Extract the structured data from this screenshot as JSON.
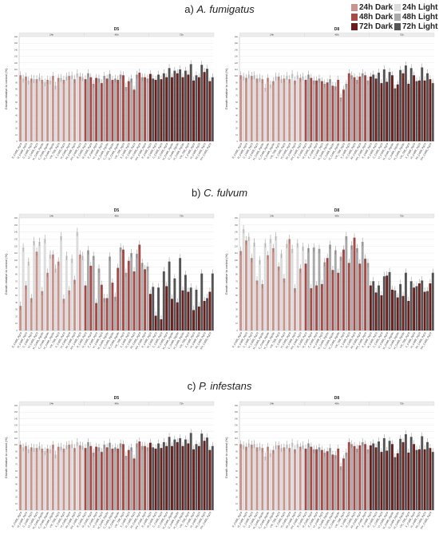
{
  "legend": {
    "items": [
      {
        "label": "24h Dark",
        "color": "#c9948e"
      },
      {
        "label": "24h Light",
        "color": "#dcdcdc"
      },
      {
        "label": "48h Dark",
        "color": "#a84a48"
      },
      {
        "label": "48h Light",
        "color": "#a9a9a9"
      },
      {
        "label": "72h Dark",
        "color": "#6b1c1c"
      },
      {
        "label": "72h Light",
        "color": "#555555"
      }
    ]
  },
  "sections": [
    {
      "letter": "a)",
      "organism": "A. fumigatus"
    },
    {
      "letter": "b)",
      "organism": "C. fulvum"
    },
    {
      "letter": "c)",
      "organism": "P. infestans"
    }
  ],
  "chart_data": [
    {
      "type": "bar",
      "title": "D5",
      "section": "a) A. fumigatus",
      "ylabel": "Growth relative to control (%)",
      "facets": [
        "24h",
        "48h",
        "72h"
      ],
      "categories": [
        "R_CoBB_Rg19",
        "M_CoBB_Rg19",
        "C_CoBB_Rg19",
        "VI_CoBB_Rg19",
        "M_CoBB_Rg19b",
        "C_CoBB_Rg19b",
        "VI_CoBB_Rg19b",
        "VIII_TBB_Rg19",
        "X_CoBB_Rg19",
        "XI_CoBB_Rg19",
        "XII_CoBB_Rg19",
        "XIV_CoBB_Rg19"
      ],
      "series": [
        {
          "name": "24h Dark",
          "values": [
            101,
            99,
            96,
            95,
            94,
            94,
            100,
            97,
            94,
            100,
            95,
            99
          ]
        },
        {
          "name": "24h Light",
          "values": [
            96,
            93,
            95,
            98,
            90,
            93,
            85,
            97,
            99,
            101,
            104,
            98
          ]
        },
        {
          "name": "48h Dark",
          "values": [
            95,
            98,
            97,
            89,
            96,
            94,
            94,
            101,
            92,
            79,
            105,
            98
          ]
        },
        {
          "name": "48h Light",
          "values": [
            104,
            88,
            96,
            100,
            103,
            96,
            102,
            83,
            96,
            102,
            98,
            96
          ]
        },
        {
          "name": "72h Dark",
          "values": [
            103,
            94,
            95,
            98,
            98,
            104,
            98,
            102,
            93,
            98,
            106,
            92
          ]
        },
        {
          "name": "72h Light",
          "values": [
            96,
            102,
            104,
            112,
            108,
            110,
            108,
            118,
            101,
            117,
            111,
            98
          ]
        }
      ]
    },
    {
      "type": "bar",
      "title": "D8",
      "section": "a) A. fumigatus",
      "ylabel": "Growth relative to control (%)",
      "facets": [
        "24h",
        "48h",
        "72h"
      ],
      "categories": [
        "R_CoBB_Rg19",
        "M_CoBB_Rg19",
        "C_CoBB_Rg19",
        "VI_CoBB_Rg19",
        "M_CoBB_Rg19b",
        "C_CoBB_Rg19b",
        "VI_CoBB_Rg19b",
        "VIII_TBB_Rg19",
        "X_CoBB_Rg19",
        "XI_CoBB_Rg19",
        "XII_CoBB_Rg19",
        "XIV_CoBB_Rg19"
      ],
      "series": [
        {
          "name": "24h Dark",
          "values": [
            101,
            97,
            100,
            96,
            95,
            97,
            92,
            99,
            96,
            95,
            93,
            97
          ]
        },
        {
          "name": "24h Light",
          "values": [
            99,
            102,
            101,
            97,
            82,
            87,
            99,
            95,
            100,
            103,
            101,
            99
          ]
        },
        {
          "name": "48h Dark",
          "values": [
            94,
            97,
            93,
            92,
            90,
            85,
            94,
            79,
            104,
            98,
            99,
            101
          ]
        },
        {
          "name": "48h Light",
          "values": [
            102,
            93,
            96,
            88,
            95,
            84,
            67,
            88,
            101,
            94,
            104,
            93
          ]
        },
        {
          "name": "72h Dark",
          "values": [
            99,
            96,
            89,
            91,
            101,
            87,
            104,
            88,
            101,
            93,
            93,
            95
          ]
        },
        {
          "name": "72h Light",
          "values": [
            102,
            105,
            110,
            106,
            81,
            109,
            116,
            112,
            92,
            113,
            104,
            89
          ]
        }
      ]
    },
    {
      "type": "bar",
      "title": "D5",
      "section": "b) C. fulvum",
      "ylabel": "Growth relative to control (%)",
      "facets": [
        "24h",
        "48h",
        "72h"
      ],
      "categories": [
        "R_CoBB_Rg19",
        "M_CoBB_Rg19",
        "C_CoBB_Rg19",
        "VI_CoBB_Rg19",
        "M_CoBB_Rg19b",
        "C_CoBB_Rg19b",
        "VI_CoBB_Rg19b",
        "VIII_TBB_Rg19",
        "X_CoBB_Rg19",
        "XI_CoBB_Rg19",
        "XII_CoBB_Rg19",
        "XIV_CoBB_Rg19"
      ],
      "series": [
        {
          "name": "24h Dark",
          "values": [
            35,
            64,
            46,
            112,
            56,
            82,
            108,
            98,
            45,
            57,
            72,
            108
          ]
        },
        {
          "name": "24h Light",
          "values": [
            118,
            98,
            127,
            126,
            130,
            108,
            88,
            134,
            106,
            102,
            140,
            106
          ]
        },
        {
          "name": "48h Dark",
          "values": [
            64,
            92,
            39,
            65,
            46,
            68,
            89,
            115,
            99,
            84,
            122,
            87
          ]
        },
        {
          "name": "48h Light",
          "values": [
            114,
            106,
            88,
            46,
            105,
            48,
            118,
            82,
            110,
            109,
            96,
            91
          ]
        },
        {
          "name": "72h Dark",
          "values": [
            52,
            21,
            16,
            63,
            45,
            40,
            57,
            55,
            29,
            34,
            42,
            55
          ]
        },
        {
          "name": "72h Light",
          "values": [
            62,
            61,
            84,
            98,
            74,
            103,
            79,
            61,
            58,
            81,
            46,
            81
          ]
        }
      ]
    },
    {
      "type": "bar",
      "title": "D8",
      "section": "b) C. fulvum",
      "ylabel": "Growth relative to control (%)",
      "facets": [
        "24h",
        "48h",
        "72h"
      ],
      "categories": [
        "R_CoBB_Rg19",
        "M_CoBB_Rg19",
        "C_CoBB_Rg19",
        "VI_CoBB_Rg19",
        "M_CoBB_Rg19b",
        "C_CoBB_Rg19b",
        "VI_CoBB_Rg19b",
        "VIII_TBB_Rg19",
        "X_CoBB_Rg19",
        "XI_CoBB_Rg19",
        "XII_CoBB_Rg19",
        "XIV_CoBB_Rg19"
      ],
      "series": [
        {
          "name": "24h Dark",
          "values": [
            113,
            128,
            103,
            71,
            66,
            107,
            117,
            91,
            74,
            130,
            60,
            88
          ]
        },
        {
          "name": "24h Light",
          "values": [
            144,
            133,
            125,
            100,
            124,
            130,
            134,
            109,
            123,
            116,
            124,
            119
          ]
        },
        {
          "name": "48h Dark",
          "values": [
            95,
            60,
            64,
            66,
            103,
            86,
            82,
            115,
            96,
            132,
            95,
            102
          ]
        },
        {
          "name": "48h Light",
          "values": [
            117,
            118,
            116,
            97,
            122,
            114,
            105,
            134,
            121,
            117,
            126,
            96
          ]
        },
        {
          "name": "72h Dark",
          "values": [
            64,
            54,
            50,
            78,
            58,
            47,
            49,
            42,
            61,
            67,
            55,
            67
          ]
        },
        {
          "name": "72h Light",
          "values": [
            70,
            64,
            77,
            83,
            57,
            66,
            82,
            70,
            63,
            71,
            56,
            82
          ]
        }
      ]
    },
    {
      "type": "bar",
      "title": "D5",
      "section": "c) P. infestans",
      "ylabel": "Growth relative to control (%)",
      "facets": [
        "24h",
        "48h",
        "72h"
      ],
      "categories": [
        "R_CoBB_Rg19",
        "M_CoBB_Rg19",
        "C_CoBB_Rg19",
        "VI_CoBB_Rg19",
        "M_CoBB_Rg19b",
        "C_CoBB_Rg19b",
        "VI_CoBB_Rg19b",
        "VIII_TBB_Rg19",
        "X_CoBB_Rg19",
        "XI_CoBB_Rg19",
        "XII_CoBB_Rg19",
        "XIV_CoBB_Rg19"
      ],
      "series": [
        {
          "name": "24h Dark",
          "values": [
            100,
            98,
            96,
            95,
            94,
            94,
            100,
            97,
            94,
            100,
            95,
            99
          ]
        },
        {
          "name": "24h Light",
          "values": [
            96,
            93,
            95,
            98,
            90,
            93,
            85,
            97,
            99,
            101,
            104,
            98
          ]
        },
        {
          "name": "48h Dark",
          "values": [
            95,
            98,
            97,
            89,
            96,
            94,
            94,
            101,
            92,
            79,
            105,
            98
          ]
        },
        {
          "name": "48h Light",
          "values": [
            104,
            88,
            96,
            100,
            103,
            96,
            102,
            83,
            96,
            102,
            98,
            96
          ]
        },
        {
          "name": "72h Dark",
          "values": [
            103,
            94,
            95,
            98,
            98,
            104,
            98,
            102,
            93,
            98,
            106,
            92
          ]
        },
        {
          "name": "72h Light",
          "values": [
            96,
            102,
            104,
            112,
            108,
            110,
            108,
            118,
            101,
            117,
            111,
            98
          ]
        }
      ]
    },
    {
      "type": "bar",
      "title": "D8",
      "section": "c) P. infestans",
      "ylabel": "Growth relative to control (%)",
      "facets": [
        "24h",
        "48h",
        "72h"
      ],
      "categories": [
        "R_CoBB_Rg19",
        "M_CoBB_Rg19",
        "C_CoBB_Rg19",
        "VI_CoBB_Rg19",
        "M_CoBB_Rg19b",
        "C_CoBB_Rg19b",
        "VI_CoBB_Rg19b",
        "VIII_TBB_Rg19",
        "X_CoBB_Rg19",
        "XI_CoBB_Rg19",
        "XII_CoBB_Rg19",
        "XIV_CoBB_Rg19"
      ],
      "series": [
        {
          "name": "24h Dark",
          "values": [
            101,
            97,
            100,
            96,
            95,
            97,
            92,
            99,
            96,
            95,
            93,
            97
          ]
        },
        {
          "name": "24h Light",
          "values": [
            99,
            102,
            101,
            97,
            82,
            87,
            99,
            95,
            100,
            103,
            101,
            99
          ]
        },
        {
          "name": "48h Dark",
          "values": [
            94,
            97,
            93,
            92,
            90,
            85,
            94,
            79,
            104,
            98,
            99,
            101
          ]
        },
        {
          "name": "48h Light",
          "values": [
            102,
            93,
            96,
            88,
            95,
            84,
            67,
            88,
            101,
            94,
            104,
            93
          ]
        },
        {
          "name": "72h Dark",
          "values": [
            99,
            96,
            89,
            91,
            101,
            87,
            104,
            88,
            101,
            93,
            93,
            95
          ]
        },
        {
          "name": "72h Light",
          "values": [
            102,
            105,
            110,
            106,
            81,
            109,
            116,
            112,
            92,
            113,
            104,
            89
          ]
        }
      ]
    }
  ]
}
